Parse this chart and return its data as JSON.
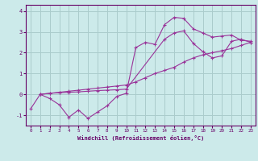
{
  "xlabel": "Windchill (Refroidissement éolien,°C)",
  "xlim": [
    -0.5,
    23.5
  ],
  "ylim": [
    -1.5,
    4.3
  ],
  "xticks": [
    0,
    1,
    2,
    3,
    4,
    5,
    6,
    7,
    8,
    9,
    10,
    11,
    12,
    13,
    14,
    15,
    16,
    17,
    18,
    19,
    20,
    21,
    22,
    23
  ],
  "yticks": [
    -1,
    0,
    1,
    2,
    3,
    4
  ],
  "bg_color": "#cceaea",
  "grid_color": "#aacccc",
  "line_color": "#993399",
  "line1_x": [
    0,
    1,
    2,
    3,
    4,
    5,
    6,
    7,
    8,
    9,
    10,
    11,
    12,
    13,
    14,
    15,
    16,
    17,
    18,
    19,
    20,
    21,
    22,
    23
  ],
  "line1_y": [
    -0.7,
    0.0,
    -0.2,
    -0.5,
    -1.1,
    -0.75,
    -1.15,
    -0.85,
    -0.55,
    -0.1,
    0.05,
    2.25,
    2.5,
    2.4,
    3.35,
    3.7,
    3.65,
    3.15,
    2.95,
    2.75,
    2.8,
    2.85,
    2.6,
    2.55
  ],
  "line2_x": [
    1,
    2,
    3,
    4,
    5,
    6,
    7,
    8,
    9,
    10,
    14,
    15,
    16,
    17,
    18,
    19,
    20,
    21,
    22,
    23
  ],
  "line2_y": [
    0.0,
    0.05,
    0.08,
    0.1,
    0.12,
    0.15,
    0.18,
    0.2,
    0.22,
    0.25,
    2.65,
    2.95,
    3.05,
    2.45,
    2.05,
    1.75,
    1.85,
    2.55,
    2.65,
    2.5
  ],
  "line3_x": [
    1,
    2,
    3,
    4,
    5,
    6,
    7,
    8,
    9,
    10,
    11,
    12,
    13,
    14,
    15,
    16,
    17,
    18,
    19,
    20,
    21,
    22,
    23
  ],
  "line3_y": [
    0.0,
    0.05,
    0.1,
    0.15,
    0.2,
    0.25,
    0.3,
    0.35,
    0.4,
    0.45,
    0.6,
    0.8,
    1.0,
    1.15,
    1.3,
    1.55,
    1.75,
    1.9,
    2.0,
    2.1,
    2.2,
    2.35,
    2.5
  ]
}
